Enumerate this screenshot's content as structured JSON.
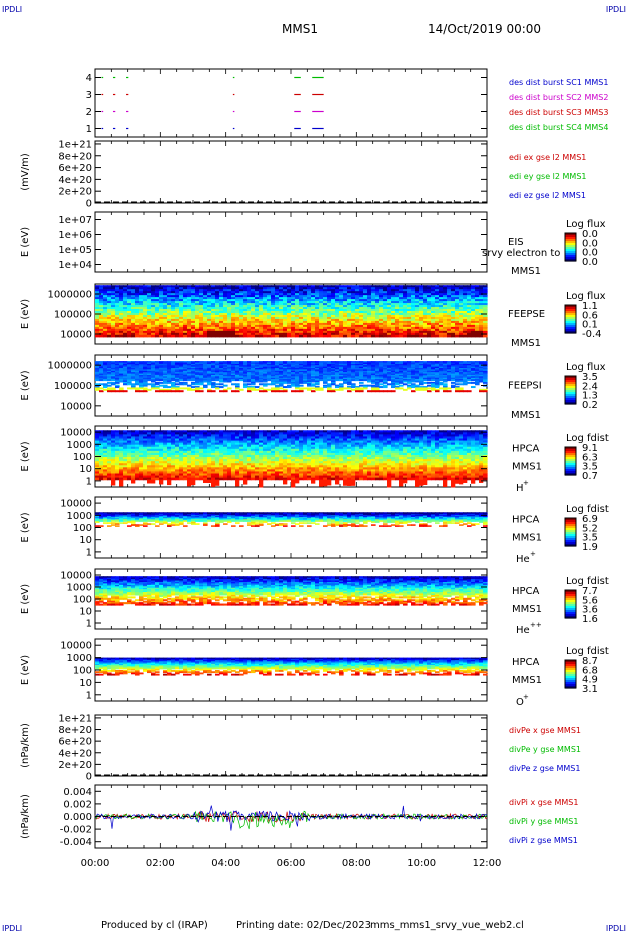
{
  "corners": {
    "tl": "IPDLI",
    "tr": "IPDLI",
    "bl": "IPDLI",
    "br": "IPDLI"
  },
  "header": {
    "spacecraft": "MMS1",
    "datetime": "14/Oct/2019 00:00"
  },
  "footer": {
    "produced_by": "Produced by cl (IRAP)",
    "printing_date": "Printing date: 02/Dec/2023",
    "script": "mms_mms1_srvy_vue_web2.cl"
  },
  "colors": {
    "blue": "#0000cc",
    "magenta": "#cc00cc",
    "red": "#cc0000",
    "green": "#00bb00"
  },
  "chart_data": [
    {
      "type": "scatter",
      "panel": "burst-availability",
      "yticks": [
        "1",
        "2",
        "3",
        "4"
      ],
      "ylim": [
        0.5,
        4.5
      ],
      "xlim_hours": [
        0,
        12
      ],
      "xticks": [
        "00:00",
        "02:00",
        "04:00",
        "06:00",
        "08:00",
        "10:00",
        "12:00"
      ],
      "series": [
        {
          "name": "des dist burst SC1 MMS1",
          "y": 1,
          "color": "#0000cc",
          "intervals_hours": [
            [
              0.2,
              0.25
            ],
            [
              0.55,
              0.62
            ],
            [
              0.95,
              1.02
            ],
            [
              4.22,
              4.26
            ],
            [
              6.1,
              6.3
            ],
            [
              6.65,
              7.0
            ]
          ]
        },
        {
          "name": "des dist burst SC2 MMS2",
          "y": 2,
          "color": "#cc00cc",
          "intervals_hours": [
            [
              0.2,
              0.25
            ],
            [
              0.55,
              0.62
            ],
            [
              0.95,
              1.02
            ],
            [
              4.22,
              4.26
            ],
            [
              6.1,
              6.3
            ],
            [
              6.65,
              7.0
            ]
          ]
        },
        {
          "name": "des dist burst SC3 MMS3",
          "y": 3,
          "color": "#cc0000",
          "intervals_hours": [
            [
              0.2,
              0.25
            ],
            [
              0.55,
              0.62
            ],
            [
              0.95,
              1.02
            ],
            [
              4.22,
              4.26
            ],
            [
              6.1,
              6.3
            ],
            [
              6.65,
              7.0
            ]
          ]
        },
        {
          "name": "des dist burst SC4 MMS4",
          "y": 4,
          "color": "#00bb00",
          "intervals_hours": [
            [
              0.2,
              0.25
            ],
            [
              0.55,
              0.62
            ],
            [
              0.95,
              1.02
            ],
            [
              4.22,
              4.26
            ],
            [
              6.1,
              6.3
            ],
            [
              6.65,
              7.0
            ]
          ]
        }
      ]
    },
    {
      "type": "line",
      "panel": "edi-e-field",
      "ylabel": "(mV/m)",
      "yticks": [
        "0",
        "2e+20",
        "4e+20",
        "6e+20",
        "8e+20",
        "1e+21"
      ],
      "ylim": [
        0,
        1.05e+21
      ],
      "series": [
        {
          "name": "edi ex gse l2 MMS1",
          "color": "#cc0000"
        },
        {
          "name": "edi ey gse l2 MMS1",
          "color": "#00bb00"
        },
        {
          "name": "edi ez gse l2 MMS1",
          "color": "#0000cc"
        }
      ]
    },
    {
      "type": "heatmap",
      "panel": "eis",
      "ylabel": "E (eV)",
      "yticks": [
        "1e+04",
        "1e+05",
        "1e+06",
        "1e+07"
      ],
      "instrument": [
        "EIS",
        "MMS1"
      ],
      "overlay_text": "srvy electron to",
      "colorbar": {
        "title": "Log flux",
        "ticks": [
          "0.0",
          "0.0",
          "0.0",
          "0.0"
        ]
      }
    },
    {
      "type": "heatmap",
      "panel": "feeps-electron",
      "ylabel": "E (eV)",
      "yticks": [
        "10000",
        "100000",
        "1000000"
      ],
      "instrument": [
        "FEEPSE",
        "MMS1"
      ],
      "colorbar": {
        "title": "Log flux",
        "ticks": [
          "1.1",
          "0.6",
          "0.1",
          "-0.4"
        ]
      }
    },
    {
      "type": "heatmap",
      "panel": "feeps-ion",
      "ylabel": "E (eV)",
      "yticks": [
        "10000",
        "100000",
        "1000000"
      ],
      "instrument": [
        "FEEPSI",
        "MMS1"
      ],
      "colorbar": {
        "title": "Log flux",
        "ticks": [
          "3.5",
          "2.4",
          "1.3",
          "0.2"
        ]
      }
    },
    {
      "type": "heatmap",
      "panel": "hpca-h",
      "ylabel": "E (eV)",
      "yticks": [
        "1",
        "10",
        "100",
        "1000",
        "10000"
      ],
      "instrument": [
        "HPCA",
        "MMS1",
        "H",
        "+"
      ],
      "colorbar": {
        "title": "Log fdist",
        "ticks": [
          "9.1",
          "6.3",
          "3.5",
          "0.7"
        ]
      }
    },
    {
      "type": "heatmap",
      "panel": "hpca-he",
      "ylabel": "E (eV)",
      "yticks": [
        "1",
        "10",
        "100",
        "1000",
        "10000"
      ],
      "instrument": [
        "HPCA",
        "MMS1",
        "He",
        "+"
      ],
      "colorbar": {
        "title": "Log fdist",
        "ticks": [
          "6.9",
          "5.2",
          "3.5",
          "1.9"
        ]
      }
    },
    {
      "type": "heatmap",
      "panel": "hpca-hepp",
      "ylabel": "E (eV)",
      "yticks": [
        "1",
        "10",
        "100",
        "1000",
        "10000"
      ],
      "instrument": [
        "HPCA",
        "MMS1",
        "He",
        "++"
      ],
      "colorbar": {
        "title": "Log fdist",
        "ticks": [
          "7.7",
          "5.6",
          "3.6",
          "1.6"
        ]
      }
    },
    {
      "type": "heatmap",
      "panel": "hpca-o",
      "ylabel": "E (eV)",
      "yticks": [
        "1",
        "10",
        "100",
        "1000",
        "10000"
      ],
      "instrument": [
        "HPCA",
        "MMS1",
        "O",
        "+"
      ],
      "colorbar": {
        "title": "Log fdist",
        "ticks": [
          "8.7",
          "6.8",
          "4.9",
          "3.1"
        ]
      }
    },
    {
      "type": "line",
      "panel": "div-pe",
      "ylabel": "(nPa/km)",
      "yticks": [
        "0",
        "2e+20",
        "4e+20",
        "6e+20",
        "8e+20",
        "1e+21"
      ],
      "ylim": [
        0,
        1.05e+21
      ],
      "series": [
        {
          "name": "divPe x gse MMS1",
          "color": "#cc0000"
        },
        {
          "name": "divPe y gse MMS1",
          "color": "#00bb00"
        },
        {
          "name": "divPe z gse MMS1",
          "color": "#0000cc"
        }
      ]
    },
    {
      "type": "line",
      "panel": "div-pi",
      "ylabel": "(nPa/km)",
      "yticks": [
        "-0.004",
        "-0.002",
        "0.000",
        "0.002",
        "0.004"
      ],
      "ylim": [
        -0.005,
        0.005
      ],
      "series": [
        {
          "name": "divPi x gse MMS1",
          "color": "#cc0000"
        },
        {
          "name": "divPi y gse MMS1",
          "color": "#00bb00"
        },
        {
          "name": "divPi z gse MMS1",
          "color": "#0000cc"
        }
      ]
    }
  ]
}
